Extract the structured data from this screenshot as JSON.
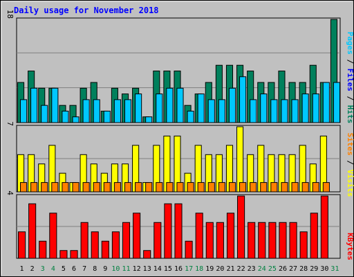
{
  "chart_data": {
    "type": "bar",
    "title": "Daily usage for November 2018",
    "categories": [
      "1",
      "2",
      "3",
      "4",
      "5",
      "6",
      "7",
      "8",
      "9",
      "10",
      "11",
      "12",
      "13",
      "14",
      "15",
      "16",
      "17",
      "18",
      "19",
      "20",
      "21",
      "22",
      "23",
      "24",
      "25",
      "26",
      "27",
      "28",
      "29",
      "30",
      "31"
    ],
    "weekend_days": [
      "3",
      "4",
      "10",
      "11",
      "17",
      "18",
      "24",
      "25",
      "31"
    ],
    "panels": [
      {
        "id": "top",
        "ymax": 18,
        "ymax_label": "18",
        "side_label": {
          "pages": "Pages",
          "sep1": " / ",
          "files": "Files",
          "sep2": " / ",
          "hits": "Hits"
        },
        "series": [
          {
            "name": "Hits",
            "color": "#00805c",
            "values": [
              7,
              9,
              6,
              6,
              3,
              3,
              6,
              7,
              2,
              6,
              5,
              6,
              1,
              9,
              9,
              9,
              3,
              5,
              7,
              10,
              10,
              10,
              9,
              7,
              7,
              9,
              7,
              7,
              10,
              7,
              18
            ]
          },
          {
            "name": "Files",
            "color": "#00c8ff",
            "values": [
              4,
              6,
              3,
              6,
              2,
              1,
              4,
              4,
              2,
              4,
              4,
              5,
              1,
              5,
              6,
              6,
              2,
              5,
              4,
              4,
              6,
              8,
              4,
              5,
              4,
              4,
              4,
              5,
              5,
              7,
              7
            ]
          },
          {
            "name": "Pages",
            "color": "#00c8ff",
            "values": [
              0,
              0,
              0,
              0,
              0,
              0,
              0,
              0,
              0,
              0,
              0,
              0,
              0,
              0,
              0,
              0,
              0,
              0,
              0,
              0,
              0,
              0,
              0,
              0,
              0,
              0,
              0,
              0,
              0,
              0,
              0
            ]
          }
        ]
      },
      {
        "id": "middle",
        "ymax": 7,
        "ymax_label": "7",
        "side_label": {
          "sites": "Sites",
          "sep": " / ",
          "visits": "Visits"
        },
        "series": [
          {
            "name": "Visits",
            "color": "#ffff00",
            "values": [
              4,
              4,
              3,
              5,
              2,
              1,
              4,
              3,
              2,
              3,
              3,
              5,
              1,
              5,
              6,
              6,
              2,
              5,
              4,
              4,
              5,
              7,
              4,
              5,
              4,
              4,
              4,
              5,
              3,
              6,
              0
            ]
          },
          {
            "name": "Sites",
            "color": "#ff8000",
            "values": [
              1,
              1,
              1,
              1,
              1,
              1,
              1,
              1,
              1,
              1,
              1,
              1,
              1,
              1,
              1,
              1,
              1,
              1,
              1,
              1,
              1,
              1,
              1,
              1,
              1,
              1,
              1,
              1,
              1,
              1,
              0
            ]
          }
        ]
      },
      {
        "id": "bottom",
        "ymax": 4,
        "ymax_label": "4",
        "side_label": {
          "kbytes": "KBytes"
        },
        "series": [
          {
            "name": "KBytes",
            "color": "#ff0000",
            "values": [
              1.7,
              3.5,
              1.1,
              2.9,
              0.5,
              0.5,
              2.3,
              1.7,
              1.1,
              1.7,
              2.3,
              2.9,
              0.5,
              2.3,
              3.5,
              3.5,
              1.1,
              2.9,
              2.3,
              2.3,
              2.9,
              4.0,
              2.3,
              2.3,
              2.3,
              2.3,
              2.3,
              1.7,
              2.9,
              4.0,
              0
            ]
          }
        ]
      }
    ],
    "colors": {
      "background": "#c0c0c0",
      "title": "#0000ff",
      "weekday_label": "#000000",
      "weekend_label": "#008040",
      "hits_label": "#00805c",
      "files_label": "#0000ff",
      "pages_label": "#00c8ff",
      "sites_label": "#ff8000",
      "visits_label": "#ffff00",
      "kbytes_label": "#ff0000"
    }
  }
}
